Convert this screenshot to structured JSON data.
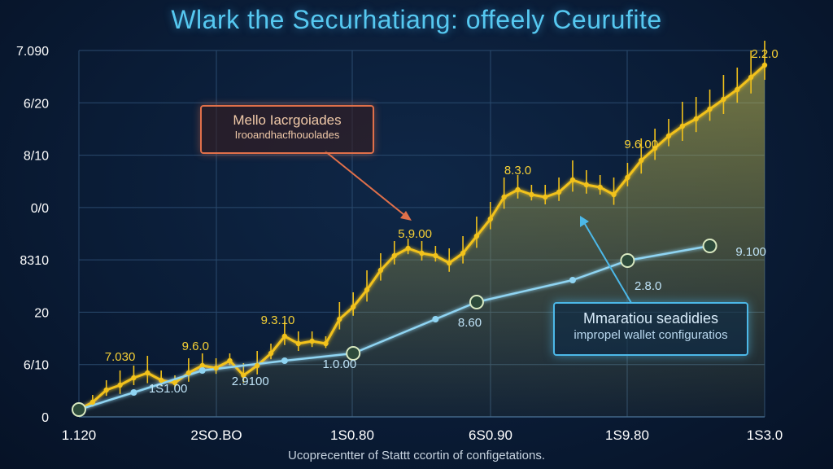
{
  "title": "Wlark the Securhatiang: offeely Ceurufite",
  "footer": "Ucoprecentter of Stattt ccortin of configetations.",
  "callout_orange": {
    "line1": "Mello Iacrgoiades",
    "line2": "Irooandhacfhouolades"
  },
  "callout_blue": {
    "line1": "Mmaratiou seadidies",
    "line2": "impropel wallet configuratios"
  },
  "colors": {
    "gold": "#f2c21b",
    "blue": "#8fd4f2",
    "grid": "#2a4a6e",
    "orange": "#e0704a"
  },
  "chart_data": {
    "type": "line",
    "title": "Wlark the Securhatiang: offeely Ceurufite",
    "xlabel": "",
    "ylabel": "",
    "grid": true,
    "y_tick_labels": [
      "0",
      "6/10",
      "20",
      "8310",
      "0/0",
      "8/10",
      "6/20",
      "7.090"
    ],
    "x_tick_labels": [
      "1.120",
      "2SO.BO",
      "1S0.80",
      "6S0.90",
      "1S9.80",
      "1S3.0"
    ],
    "x": [
      0,
      2,
      4,
      6,
      8,
      10,
      12,
      14,
      16,
      18,
      20,
      22,
      24,
      26,
      28,
      30,
      32,
      34,
      36,
      38,
      40,
      42,
      44,
      46,
      48,
      50,
      52,
      54,
      56,
      58,
      60,
      62,
      64,
      66,
      68,
      70,
      72,
      74,
      76,
      78,
      80,
      82,
      84,
      86,
      88,
      90,
      92,
      94,
      96,
      98,
      100
    ],
    "series": [
      {
        "values": [
          0.15,
          0.3,
          0.55,
          0.65,
          0.8,
          0.9,
          0.75,
          0.7,
          0.9,
          1.05,
          1.0,
          1.15,
          0.85,
          1.05,
          1.3,
          1.65,
          1.5,
          1.55,
          1.5,
          2.0,
          2.25,
          2.6,
          3.0,
          3.3,
          3.45,
          3.35,
          3.3,
          3.15,
          3.35,
          3.7,
          4.05,
          4.5,
          4.65,
          4.55,
          4.5,
          4.6,
          4.85,
          4.75,
          4.7,
          4.55,
          4.9,
          5.25,
          5.5,
          5.75,
          5.95,
          6.1,
          6.3,
          6.5,
          6.7,
          6.95,
          7.2
        ],
        "errors": [
          0.05,
          0.15,
          0.2,
          0.3,
          0.25,
          0.35,
          0.2,
          0.15,
          0.3,
          0.25,
          0.2,
          0.15,
          0.25,
          0.3,
          0.2,
          0.3,
          0.25,
          0.2,
          0.15,
          0.35,
          0.3,
          0.4,
          0.35,
          0.3,
          0.2,
          0.25,
          0.2,
          0.3,
          0.35,
          0.4,
          0.35,
          0.4,
          0.3,
          0.2,
          0.25,
          0.3,
          0.4,
          0.3,
          0.25,
          0.35,
          0.3,
          0.45,
          0.4,
          0.35,
          0.5,
          0.45,
          0.4,
          0.5,
          0.45,
          0.55,
          0.5
        ]
      },
      {
        "x": [
          0,
          8,
          18,
          30,
          40,
          52,
          58,
          72,
          80,
          92
        ],
        "values": [
          0.15,
          0.5,
          0.95,
          1.15,
          1.3,
          2.0,
          2.35,
          2.8,
          3.2,
          3.5
        ],
        "markers_at": [
          0,
          40,
          58,
          80,
          92
        ]
      }
    ],
    "point_labels": [
      {
        "text": "7.030",
        "x": 6,
        "y": 1.15,
        "series": 0
      },
      {
        "text": "9.6.0",
        "x": 17,
        "y": 1.37,
        "series": 0
      },
      {
        "text": "9.3.10",
        "x": 29,
        "y": 1.9,
        "series": 0
      },
      {
        "text": "5.9.00",
        "x": 49,
        "y": 3.67,
        "series": 0
      },
      {
        "text": "8.3.0",
        "x": 64,
        "y": 4.97,
        "series": 0
      },
      {
        "text": "9.6.00",
        "x": 82,
        "y": 5.5,
        "series": 0
      },
      {
        "text": "2.2.0",
        "x": 100,
        "y": 7.35,
        "series": 0
      },
      {
        "text": "1S1.00",
        "x": 13,
        "y": 0.5,
        "series": 1
      },
      {
        "text": "2.9100",
        "x": 25,
        "y": 0.65,
        "series": 1
      },
      {
        "text": "1.0.00",
        "x": 38,
        "y": 1.0,
        "series": 1
      },
      {
        "text": "8.60",
        "x": 57,
        "y": 1.85,
        "series": 1
      },
      {
        "text": "2.8.0",
        "x": 83,
        "y": 2.6,
        "series": 1
      },
      {
        "text": "9.100",
        "x": 98,
        "y": 3.3,
        "series": 1
      }
    ],
    "xlim": [
      0,
      100
    ],
    "ylim": [
      0,
      7.5
    ]
  }
}
